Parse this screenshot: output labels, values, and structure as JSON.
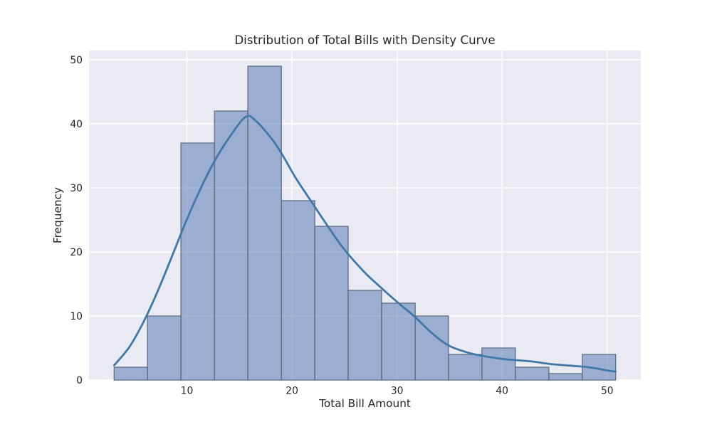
{
  "chart_data": {
    "type": "histogram",
    "title": "Distribution of Total Bills with Density Curve",
    "xlabel": "Total Bill Amount",
    "ylabel": "Frequency",
    "xlim": [
      0.68,
      53.2
    ],
    "ylim": [
      0,
      51.44
    ],
    "xticks": [
      10,
      20,
      30,
      40,
      50
    ],
    "yticks": [
      0,
      10,
      20,
      30,
      40,
      50
    ],
    "grid": true,
    "legend_position": "none",
    "bin_edges": [
      3.07,
      6.25,
      9.43,
      12.62,
      15.8,
      18.99,
      22.17,
      25.35,
      28.53,
      31.72,
      34.9,
      38.08,
      41.26,
      44.45,
      47.63,
      50.81
    ],
    "frequencies": [
      2,
      10,
      37,
      42,
      49,
      28,
      24,
      14,
      12,
      10,
      4,
      5,
      2,
      1,
      4
    ],
    "kde_curve": {
      "name": "density-curve",
      "x": [
        3.07,
        4.5,
        5.85,
        7.2,
        8.55,
        9.9,
        11.25,
        12.6,
        14.0,
        15.6,
        16.6,
        18.0,
        19.0,
        20.3,
        21.7,
        23.5,
        24.85,
        26.8,
        28.15,
        30.0,
        31.7,
        33.3,
        34.9,
        36.5,
        38.0,
        40.0,
        42.8,
        44.6,
        46.4,
        48.2,
        50.0,
        50.81
      ],
      "y": [
        2.3,
        5.1,
        9.0,
        13.8,
        19.2,
        24.7,
        29.7,
        34.1,
        37.8,
        41.1,
        40.4,
        37.8,
        35.4,
        31.7,
        28.2,
        23.8,
        20.65,
        17.0,
        14.9,
        12.2,
        9.85,
        7.35,
        5.4,
        4.4,
        3.8,
        3.3,
        2.9,
        2.5,
        2.25,
        2.0,
        1.5,
        1.3
      ]
    },
    "colors": {
      "bar_fill_base": "#4c72b0",
      "bar_fill_opacity": 0.5,
      "bar_edge": "#5f6d80",
      "kde_line": "#4178a8",
      "plot_background": "#eaeaf2",
      "figure_background": "#ffffff",
      "grid_line": "#ffffff",
      "text": "#262626"
    }
  }
}
